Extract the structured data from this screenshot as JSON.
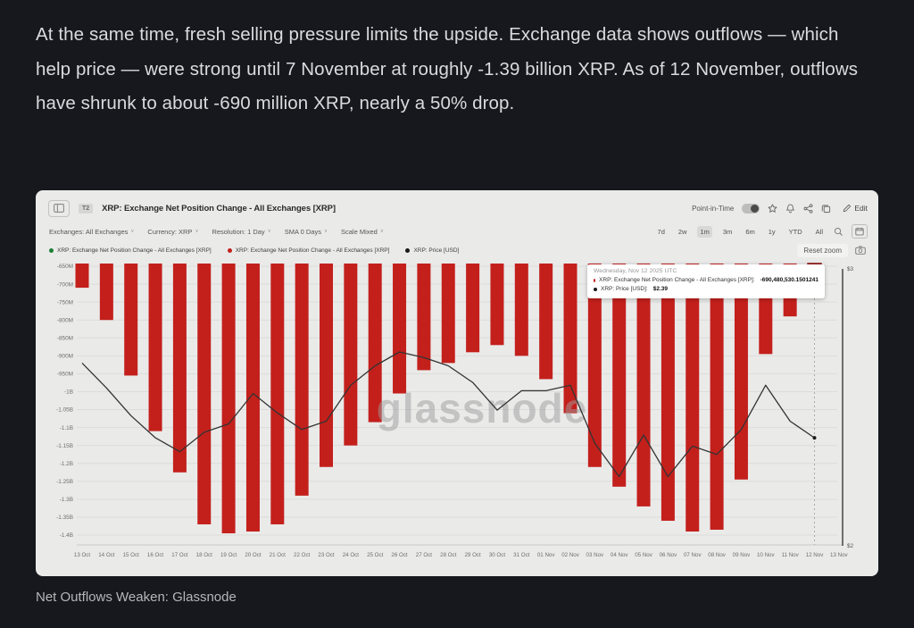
{
  "article": {
    "paragraph": "At the same time, fresh selling pressure limits the upside. Exchange data shows outflows — which help price — were strong until 7 November at roughly -1.39 billion XRP. As of 12 November, outflows have shrunk to about -690 million XRP, nearly a 50% drop.",
    "caption": "Net Outflows Weaken: Glassnode"
  },
  "chart_widget": {
    "badge": "T2",
    "title": "XRP: Exchange Net Position Change - All Exchanges [XRP]",
    "point_in_time_label": "Point-in-Time",
    "edit_label": "Edit",
    "filters": [
      "Exchanges: All Exchanges",
      "Currency: XRP",
      "Resolution: 1 Day",
      "SMA 0 Days",
      "Scale Mixed"
    ],
    "ranges": [
      "7d",
      "2w",
      "1m",
      "3m",
      "6m",
      "1y",
      "YTD",
      "All"
    ],
    "active_range": "1m",
    "reset_zoom_label": "Reset zoom",
    "legend": [
      {
        "label": "XRP: Exchange Net Position Change - All Exchanges [XRP]",
        "color": "#1b7e35"
      },
      {
        "label": "XRP: Exchange Net Position Change - All Exchanges [XRP]",
        "color": "#c3201c"
      },
      {
        "label": "XRP: Price [USD]",
        "color": "#1a1a1a"
      }
    ],
    "watermark": "glassnode",
    "tooltip": {
      "date": "Wednesday, Nov 12 2025 UTC",
      "rows": [
        {
          "color": "#c3201c",
          "label": "XRP: Exchange Net Position Change - All Exchanges [XRP]:",
          "value": "-690,480,530.1501241"
        },
        {
          "color": "#1a1a1a",
          "label": "XRP: Price [USD]:",
          "value": "$2.39"
        }
      ]
    }
  },
  "chart_data": {
    "type": "bar",
    "title": "XRP: Exchange Net Position Change - All Exchanges [XRP]",
    "categories": [
      "13 Oct",
      "14 Oct",
      "15 Oct",
      "16 Oct",
      "17 Oct",
      "18 Oct",
      "19 Oct",
      "20 Oct",
      "21 Oct",
      "22 Oct",
      "23 Oct",
      "24 Oct",
      "25 Oct",
      "26 Oct",
      "27 Oct",
      "28 Oct",
      "29 Oct",
      "30 Oct",
      "31 Oct",
      "01 Nov",
      "02 Nov",
      "03 Nov",
      "04 Nov",
      "05 Nov",
      "06 Nov",
      "07 Nov",
      "08 Nov",
      "09 Nov",
      "10 Nov",
      "11 Nov",
      "12 Nov",
      "13 Nov"
    ],
    "series": [
      {
        "name": "XRP: Exchange Net Position Change - All Exchanges [XRP]",
        "kind": "bar",
        "color": "#c3201c",
        "unit": "million XRP",
        "values": [
          -710,
          -800,
          -955,
          -1110,
          -1225,
          -1370,
          -1395,
          -1390,
          -1370,
          -1290,
          -1210,
          -1150,
          -1085,
          -1005,
          -940,
          -920,
          -890,
          -870,
          -900,
          -965,
          -1060,
          -1210,
          -1265,
          -1320,
          -1360,
          -1390,
          -1385,
          -1245,
          -895,
          -790,
          -690,
          null
        ]
      },
      {
        "name": "XRP: Price [USD]",
        "kind": "line",
        "color": "#333333",
        "unit": "USD",
        "values": [
          2.66,
          2.57,
          2.47,
          2.39,
          2.34,
          2.41,
          2.44,
          2.55,
          2.48,
          2.42,
          2.45,
          2.58,
          2.65,
          2.7,
          2.68,
          2.65,
          2.59,
          2.49,
          2.56,
          2.56,
          2.58,
          2.37,
          2.25,
          2.4,
          2.25,
          2.36,
          2.33,
          2.42,
          2.58,
          2.45,
          2.39,
          null
        ]
      }
    ],
    "left_axis": {
      "tick_labels": [
        "-650M",
        "-700M",
        "-750M",
        "-800M",
        "-850M",
        "-900M",
        "-950M",
        "-1B",
        "-1.05B",
        "-1.1B",
        "-1.15B",
        "-1.2B",
        "-1.25B",
        "-1.3B",
        "-1.35B",
        "-1.4B"
      ],
      "tick_values": [
        -650,
        -700,
        -750,
        -800,
        -850,
        -900,
        -950,
        -1000,
        -1050,
        -1100,
        -1150,
        -1200,
        -1250,
        -1300,
        -1350,
        -1400
      ],
      "min": -1400,
      "max": -650
    },
    "right_axis": {
      "tick_labels": [
        "$3",
        "$2"
      ],
      "tick_values": [
        3,
        2
      ],
      "min": 2,
      "max": 3
    },
    "highlighted_category": "12 Nov",
    "grid": true,
    "legend_position": "top-left"
  }
}
